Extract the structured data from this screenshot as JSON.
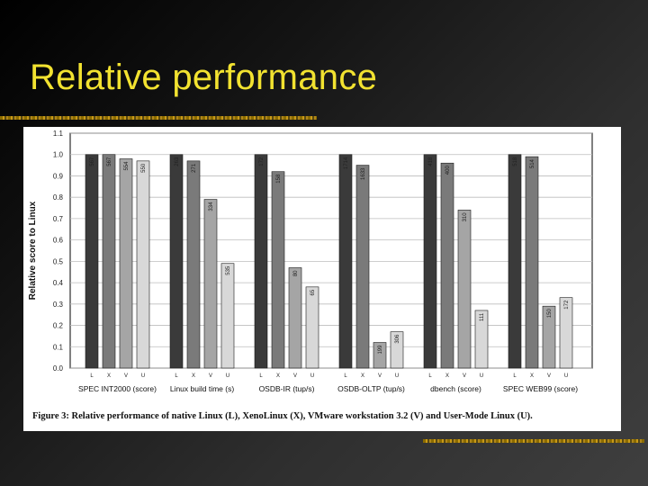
{
  "slide": {
    "title": "Relative performance"
  },
  "chart_data": {
    "type": "bar",
    "ylabel": "Relative score to Linux",
    "ylim": [
      0,
      1.1
    ],
    "yticks": [
      0.0,
      0.1,
      0.2,
      0.3,
      0.4,
      0.5,
      0.6,
      0.7,
      0.8,
      0.9,
      1.0,
      1.1
    ],
    "bar_labels": [
      "L",
      "X",
      "V",
      "U"
    ],
    "caption": "Figure 3:  Relative performance of native Linux (L), XenoLinux (X), VMware workstation 3.2 (V) and User-Mode Linux (U).",
    "colors": [
      "#3a3a3a",
      "#7a7a7a",
      "#a5a5a5",
      "#d8d8d8"
    ],
    "groups": [
      {
        "name": "SPEC INT2000 (score)",
        "values": [
          1.0,
          1.0,
          0.98,
          0.97
        ],
        "labels": [
          "567",
          "567",
          "554",
          "550"
        ]
      },
      {
        "name": "Linux build time (s)",
        "values": [
          1.0,
          0.97,
          0.79,
          0.49
        ],
        "labels": [
          "263",
          "271",
          "334",
          "535"
        ]
      },
      {
        "name": "OSDB-IR (tup/s)",
        "values": [
          1.0,
          0.92,
          0.47,
          0.38
        ],
        "labels": [
          "172",
          "158",
          "80",
          "65"
        ]
      },
      {
        "name": "OSDB-OLTP (tup/s)",
        "values": [
          1.0,
          0.95,
          0.12,
          0.17
        ],
        "labels": [
          "1714",
          "1633",
          "199",
          "306"
        ]
      },
      {
        "name": "dbench (score)",
        "values": [
          1.0,
          0.96,
          0.74,
          0.27
        ],
        "labels": [
          "418",
          "400",
          "310",
          "111"
        ]
      },
      {
        "name": "SPEC WEB99 (score)",
        "values": [
          1.0,
          0.99,
          0.29,
          0.33
        ],
        "labels": [
          "518",
          "514",
          "150",
          "172"
        ]
      }
    ]
  }
}
